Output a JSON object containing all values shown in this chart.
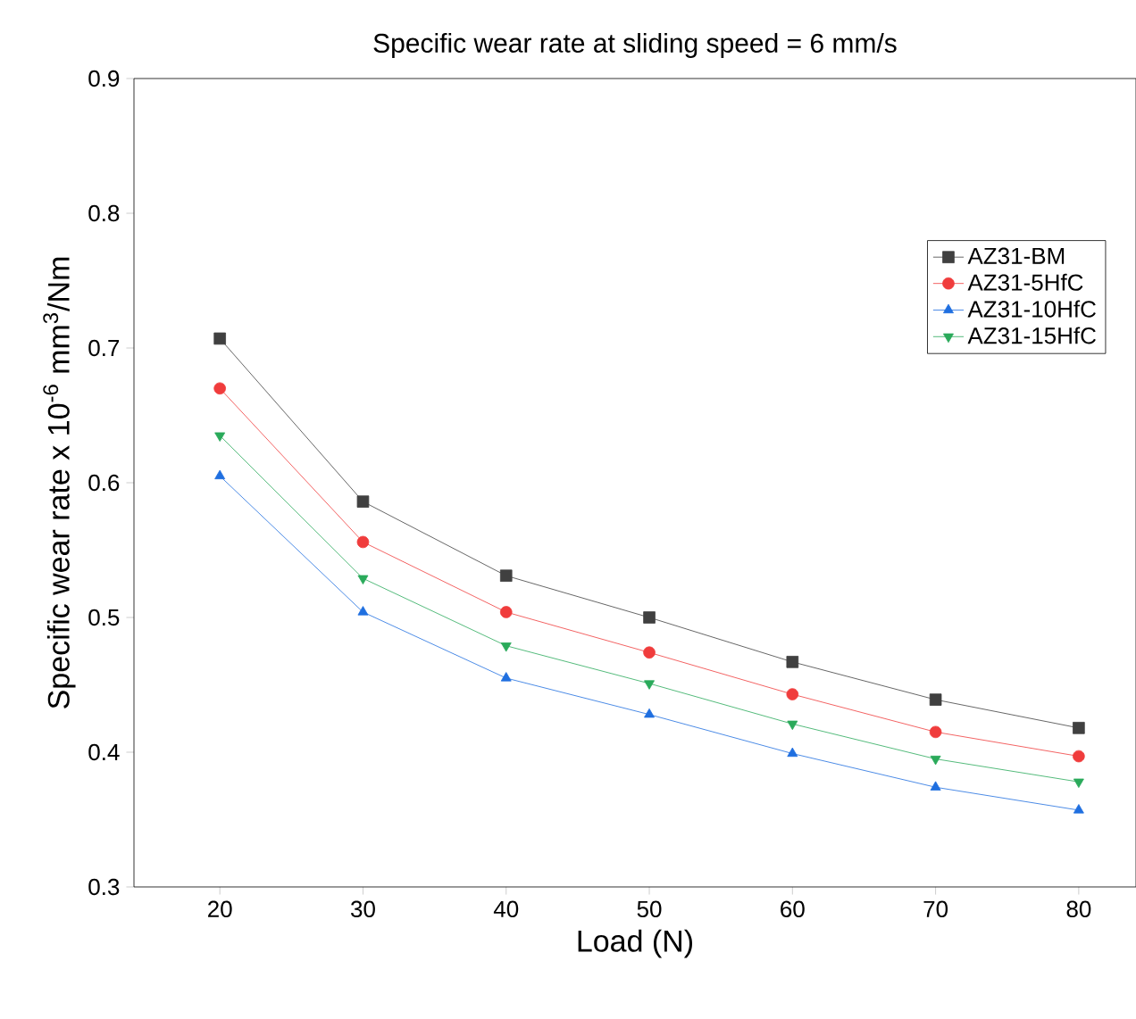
{
  "chart_data": {
    "type": "line",
    "title": "Specific wear rate at sliding speed = 6 mm/s",
    "xlabel": "Load (N)",
    "ylabel": "Specific wear rate x 10$^{-6}$ mm$^{3}$/Nm",
    "x": [
      20,
      30,
      40,
      50,
      60,
      70,
      80
    ],
    "series": [
      {
        "name": "AZ31-BM",
        "color": "#404040",
        "marker": "square",
        "values": [
          0.707,
          0.586,
          0.531,
          0.5,
          0.467,
          0.439,
          0.418
        ]
      },
      {
        "name": "AZ31-5HfC",
        "color": "#f03c3c",
        "marker": "circle",
        "values": [
          0.67,
          0.556,
          0.504,
          0.474,
          0.443,
          0.415,
          0.397
        ]
      },
      {
        "name": "AZ31-10HfC",
        "color": "#1f6fe0",
        "marker": "triangle",
        "values": [
          0.605,
          0.504,
          0.455,
          0.428,
          0.399,
          0.374,
          0.357
        ]
      },
      {
        "name": "AZ31-15HfC",
        "color": "#2aaa5a",
        "marker": "triangle-down",
        "values": [
          0.635,
          0.529,
          0.479,
          0.451,
          0.421,
          0.395,
          0.378
        ]
      }
    ],
    "xlim": [
      14,
      84
    ],
    "ylim": [
      0.3,
      0.9
    ],
    "xticks": [
      20,
      30,
      40,
      50,
      60,
      70,
      80
    ],
    "yticks": [
      {
        "value": 0.3,
        "label": "0.3"
      },
      {
        "value": 0.4,
        "label": "0.4"
      },
      {
        "value": 0.5,
        "label": "0.5"
      },
      {
        "value": 0.6,
        "label": "0.6"
      },
      {
        "value": 0.7,
        "label": "0.7"
      },
      {
        "value": 0.8,
        "label": "0.8"
      },
      {
        "value": 0.9,
        "label": "0.9"
      }
    ],
    "grid": false,
    "legend": "top right",
    "line_style": "solid"
  }
}
